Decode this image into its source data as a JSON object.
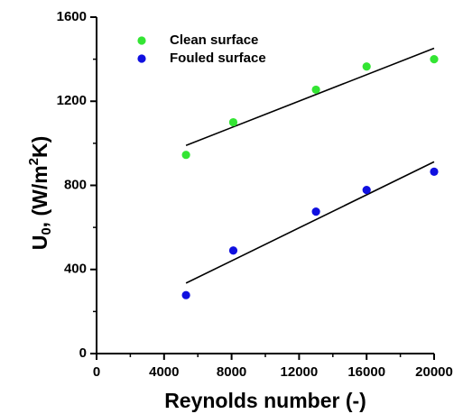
{
  "chart_data": {
    "type": "scatter",
    "xlabel": "Reynolds number (-)",
    "ylabel": {
      "parts": [
        {
          "text": "U",
          "shift": "none"
        },
        {
          "text": "0",
          "shift": "sub"
        },
        {
          "text": ", (W/m",
          "shift": "none"
        },
        {
          "text": "2",
          "shift": "super"
        },
        {
          "text": "K)",
          "shift": "none"
        }
      ]
    },
    "xlim": [
      0,
      20000
    ],
    "ylim": [
      0,
      1600
    ],
    "xticks": [
      0,
      4000,
      8000,
      12000,
      16000,
      20000
    ],
    "yticks": [
      0,
      400,
      800,
      1200,
      1600
    ],
    "x_minor_step": 2000,
    "y_minor_step": 200,
    "legend_position": "top-left",
    "grid": false,
    "series": [
      {
        "name": "Clean surface",
        "color": "#33e533",
        "points": [
          [
            5300,
            945
          ],
          [
            8100,
            1100
          ],
          [
            13000,
            1255
          ],
          [
            16000,
            1365
          ],
          [
            20000,
            1400
          ]
        ],
        "fit": [
          [
            5300,
            990
          ],
          [
            20000,
            1452
          ]
        ]
      },
      {
        "name": "Fouled surface",
        "color": "#1010e0",
        "points": [
          [
            5300,
            278
          ],
          [
            8100,
            490
          ],
          [
            13000,
            675
          ],
          [
            16000,
            778
          ],
          [
            20000,
            865
          ]
        ],
        "fit": [
          [
            5300,
            335
          ],
          [
            20000,
            912
          ]
        ]
      }
    ]
  }
}
